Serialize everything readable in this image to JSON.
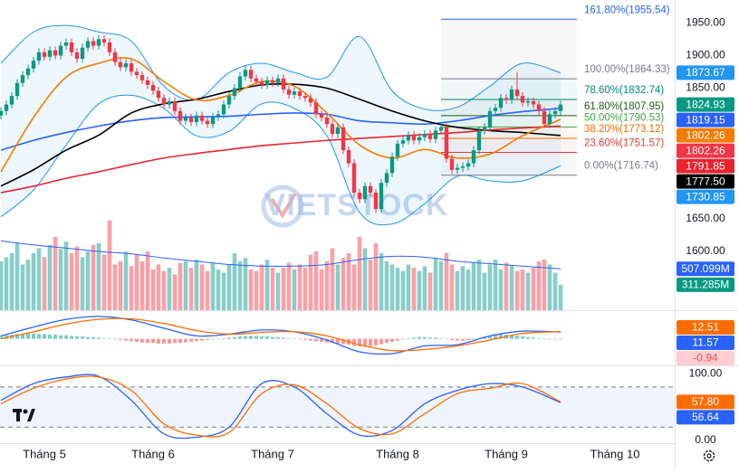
{
  "chart_data": {
    "type": "candlestick",
    "watermark": "VIETSTOCK",
    "up_color": "#089981",
    "down_color": "#f23645",
    "categories": [
      null,
      null,
      null,
      null,
      null,
      null,
      null,
      null,
      "Tháng 5",
      null,
      null,
      null,
      null,
      null,
      null,
      null,
      null,
      null,
      null,
      null,
      null,
      null,
      null,
      null,
      null,
      null,
      null,
      null,
      "Tháng 6",
      null,
      null,
      null,
      null,
      null,
      null,
      null,
      null,
      null,
      null,
      null,
      null,
      null,
      null,
      null,
      null,
      null,
      null,
      null,
      null,
      null,
      "Tháng 7",
      null,
      null,
      null,
      null,
      null,
      null,
      null,
      null,
      null,
      null,
      null,
      null,
      null,
      null,
      null,
      null,
      null,
      null,
      null,
      null,
      null,
      null,
      "Tháng 8",
      null,
      null,
      null,
      null,
      null,
      null,
      null,
      null,
      null,
      null,
      null,
      null,
      null,
      null,
      null,
      null,
      null,
      null,
      null,
      "Tháng 9",
      null,
      null,
      null,
      null,
      null,
      null,
      null,
      null,
      null,
      null,
      null,
      null,
      null,
      null,
      null,
      null,
      null,
      null,
      null,
      "Tháng 10",
      null,
      null,
      null,
      null,
      null,
      null,
      null,
      null,
      null,
      null
    ],
    "open": [
      1808,
      1815,
      1825,
      1838,
      1858,
      1870,
      1880,
      1892,
      1905,
      1898,
      1908,
      1900,
      1915,
      1920,
      1905,
      1895,
      1912,
      1922,
      1915,
      1925,
      1920,
      1905,
      1890,
      1882,
      1888,
      1875,
      1870,
      1862,
      1855,
      1846,
      1835,
      1825,
      1830,
      1815,
      1800,
      1805,
      1798,
      1808,
      1800,
      1795,
      1806,
      1810,
      1825,
      1838,
      1850,
      1868,
      1878,
      1865,
      1860,
      1855,
      1862,
      1858,
      1865,
      1848,
      1840,
      1845,
      1838,
      1835,
      1828,
      1810,
      1805,
      1795,
      1780,
      1790,
      1755,
      1735,
      1690,
      1680,
      1700,
      1690,
      1665,
      1705,
      1720,
      1745,
      1765,
      1770,
      1778,
      1770,
      1775,
      1780,
      1772,
      1785,
      1790,
      1742,
      1725,
      1728,
      1730,
      1735,
      1755,
      1785,
      1790,
      1815,
      1820,
      1835,
      1832,
      1848,
      1838,
      1828,
      1830,
      1825,
      1815,
      1795,
      1810,
      1815,
      null,
      null,
      null,
      null,
      null,
      null,
      null,
      null,
      null,
      null,
      null,
      null,
      null,
      null,
      null,
      null,
      null,
      null,
      null,
      null
    ],
    "high": [
      1821,
      1831,
      1844,
      1864,
      1876,
      1886,
      1898,
      1911,
      1911,
      1914,
      1914,
      1921,
      1926,
      1926,
      1911,
      1918,
      1928,
      1928,
      1931,
      1931,
      1926,
      1911,
      1896,
      1894,
      1894,
      1881,
      1876,
      1868,
      1861,
      1852,
      1841,
      1836,
      1836,
      1821,
      1811,
      1811,
      1814,
      1814,
      1806,
      1812,
      1816,
      1831,
      1844,
      1856,
      1874,
      1884,
      1884,
      1871,
      1866,
      1868,
      1868,
      1871,
      1871,
      1854,
      1851,
      1851,
      1844,
      1841,
      1834,
      1816,
      1811,
      1801,
      1796,
      1796,
      1761,
      1741,
      1696,
      1706,
      1706,
      1696,
      1711,
      1726,
      1751,
      1771,
      1776,
      1784,
      1784,
      1781,
      1786,
      1786,
      1791,
      1796,
      1796,
      1748,
      1734,
      1736,
      1741,
      1761,
      1791,
      1796,
      1821,
      1826,
      1841,
      1841,
      1854,
      1874,
      1844,
      1836,
      1836,
      1831,
      1821,
      1816,
      1821,
      1831,
      null,
      null,
      null,
      null,
      null,
      null,
      null,
      null,
      null,
      null,
      null,
      null,
      null,
      null,
      null,
      null,
      null,
      null,
      null,
      null
    ],
    "low": [
      1802,
      1809,
      1819,
      1832,
      1852,
      1864,
      1874,
      1886,
      1892,
      1892,
      1894,
      1894,
      1909,
      1899,
      1889,
      1889,
      1906,
      1909,
      1909,
      1914,
      1899,
      1884,
      1876,
      1876,
      1869,
      1864,
      1856,
      1849,
      1840,
      1829,
      1819,
      1819,
      1809,
      1794,
      1794,
      1792,
      1792,
      1794,
      1789,
      1789,
      1800,
      1804,
      1819,
      1832,
      1844,
      1862,
      1859,
      1854,
      1849,
      1849,
      1852,
      1852,
      1842,
      1834,
      1834,
      1832,
      1829,
      1822,
      1804,
      1799,
      1789,
      1774,
      1774,
      1749,
      1729,
      1684,
      1674,
      1674,
      1684,
      1659,
      1659,
      1699,
      1714,
      1739,
      1759,
      1764,
      1764,
      1764,
      1769,
      1766,
      1766,
      1779,
      1736,
      1719,
      1719,
      1722,
      1724,
      1729,
      1749,
      1779,
      1784,
      1809,
      1814,
      1826,
      1826,
      1832,
      1822,
      1822,
      1819,
      1809,
      1789,
      1789,
      1804,
      1809,
      null,
      null,
      null,
      null,
      null,
      null,
      null,
      null,
      null,
      null,
      null,
      null,
      null,
      null,
      null,
      null,
      null,
      null,
      null,
      null
    ],
    "close": [
      1815,
      1825,
      1838,
      1858,
      1870,
      1880,
      1892,
      1905,
      1898,
      1908,
      1900,
      1915,
      1920,
      1905,
      1895,
      1912,
      1922,
      1915,
      1925,
      1920,
      1905,
      1890,
      1882,
      1888,
      1875,
      1870,
      1862,
      1855,
      1846,
      1835,
      1825,
      1830,
      1815,
      1800,
      1805,
      1798,
      1808,
      1800,
      1795,
      1806,
      1810,
      1825,
      1838,
      1850,
      1868,
      1878,
      1865,
      1860,
      1855,
      1862,
      1858,
      1865,
      1848,
      1840,
      1845,
      1838,
      1835,
      1828,
      1810,
      1805,
      1795,
      1780,
      1790,
      1755,
      1735,
      1690,
      1680,
      1700,
      1690,
      1665,
      1705,
      1720,
      1745,
      1765,
      1770,
      1778,
      1770,
      1775,
      1780,
      1772,
      1785,
      1790,
      1742,
      1725,
      1728,
      1730,
      1735,
      1755,
      1785,
      1790,
      1815,
      1820,
      1835,
      1832,
      1848,
      1838,
      1828,
      1830,
      1825,
      1815,
      1795,
      1810,
      1815,
      1824.93,
      null,
      null,
      null,
      null,
      null,
      null,
      null,
      null,
      null,
      null,
      null,
      null,
      null,
      null,
      null,
      null,
      null,
      null,
      null,
      null
    ],
    "ylim": [
      1510,
      1985
    ],
    "yticks": [
      {
        "value": 1950,
        "label": "1950.00"
      },
      {
        "value": 1900,
        "label": "1900.00"
      },
      {
        "value": 1850,
        "label": "1850.00"
      },
      {
        "value": 1650,
        "label": "1650.00"
      },
      {
        "value": 1600,
        "label": "1600.00"
      }
    ],
    "grid": false,
    "line_x": [
      0,
      6,
      12,
      18,
      24,
      30,
      36,
      42,
      48,
      54,
      60,
      66,
      72,
      78,
      84,
      90,
      96,
      103
    ],
    "bands": {
      "color": "#2196f3",
      "fill": "#2196f3",
      "upper": [
        1888,
        1936,
        1946,
        1936,
        1922,
        1853,
        1832,
        1874,
        1888,
        1874,
        1867,
        1929,
        1846,
        1818,
        1821,
        1853,
        1888,
        1873.67
      ],
      "lower": [
        1653,
        1694,
        1763,
        1826,
        1839,
        1819,
        1777,
        1784,
        1826,
        1819,
        1777,
        1660,
        1642,
        1673,
        1715,
        1708,
        1708,
        1730.85
      ]
    },
    "lines": [
      {
        "color": "#2962ff",
        "values": [
          1755,
          1770,
          1782,
          1792,
          1800,
          1805,
          1806,
          1807,
          1810,
          1812,
          1810,
          1800,
          1797,
          1795,
          1800,
          1808,
          1814,
          1819.15
        ]
      },
      {
        "color": "#000000",
        "values": [
          1700,
          1725,
          1755,
          1778,
          1812,
          1826,
          1833,
          1845,
          1855,
          1856,
          1850,
          1833,
          1815,
          1800,
          1790,
          1785,
          1782,
          1777.5
        ],
        "value_labels": [
          null,
          null,
          null,
          null,
          null,
          null,
          null,
          null,
          null,
          null,
          null,
          null,
          null,
          null,
          null,
          null,
          null,
          "1777.50"
        ]
      },
      {
        "color": "#e8242f",
        "values": [
          1690,
          1700,
          1712,
          1722,
          1733,
          1743,
          1750,
          1756,
          1762,
          1766,
          1770,
          1773,
          1776,
          1779,
          1782,
          1786,
          1789,
          1791.85
        ]
      },
      {
        "color": "#f57c00",
        "values": [
          1722,
          1805,
          1867,
          1888,
          1895,
          1860,
          1832,
          1839,
          1860,
          1853,
          1812,
          1763,
          1743,
          1756,
          1743,
          1749,
          1777,
          1802.26
        ]
      }
    ],
    "price_markers": [
      {
        "value": 1802.26,
        "color": "#f23645"
      }
    ],
    "fib_levels": [
      {
        "label": "161.80%(1955.54)",
        "value": 1955.54,
        "color": "#2962ff"
      },
      {
        "label": "100.00%(1864.33)",
        "value": 1864.33,
        "color": "#787b86"
      },
      {
        "label": "78.60%(1832.74)",
        "value": 1832.74,
        "color": "#00897b"
      },
      {
        "label": "61.80%(1807.95)",
        "value": 1807.95,
        "color": "#1b5e20"
      },
      {
        "label": "50.00%(1790.53)",
        "value": 1790.53,
        "color": "#43a047"
      },
      {
        "label": "38.20%(1773.12)",
        "value": 1773.12,
        "color": "#ef6c00"
      },
      {
        "label": "23.60%(1751.57)",
        "value": 1751.57,
        "color": "#e53935"
      },
      {
        "label": "0.00%(1716.74)",
        "value": 1716.74,
        "color": "#787b86"
      }
    ],
    "volume": {
      "ylim": [
        0,
        3800
      ],
      "up_color": "#26a69a",
      "down_color": "#f7525f",
      "values": [
        600,
        650,
        700,
        820,
        560,
        620,
        700,
        760,
        650,
        800,
        900,
        750,
        840,
        700,
        780,
        650,
        720,
        800,
        820,
        680,
        1100,
        560,
        600,
        720,
        540,
        680,
        600,
        720,
        500,
        560,
        480,
        520,
        440,
        580,
        600,
        520,
        620,
        560,
        480,
        580,
        500,
        460,
        560,
        700,
        600,
        640,
        500,
        480,
        560,
        620,
        520,
        460,
        520,
        580,
        500,
        560,
        520,
        680,
        720,
        500,
        600,
        760,
        560,
        640,
        700,
        560,
        900,
        760,
        620,
        820,
        700,
        600,
        560,
        520,
        480,
        560,
        520,
        480,
        540,
        460,
        640,
        600,
        700,
        560,
        480,
        540,
        500,
        580,
        620,
        460,
        560,
        620,
        500,
        580,
        540,
        480,
        500,
        460,
        520,
        600,
        620,
        560,
        460,
        311.285,
        null,
        null,
        null,
        null,
        null,
        null,
        null,
        null,
        null,
        null,
        null,
        null,
        null,
        null,
        null,
        null,
        null,
        null,
        null,
        null
      ],
      "value_labels": [
        null,
        null,
        null,
        null,
        null,
        null,
        null,
        null,
        null,
        null,
        null,
        null,
        null,
        null,
        null,
        null,
        null,
        null,
        null,
        null,
        null,
        null,
        null,
        null,
        null,
        null,
        null,
        null,
        null,
        null,
        null,
        null,
        null,
        null,
        null,
        null,
        null,
        null,
        null,
        null,
        null,
        null,
        null,
        null,
        null,
        null,
        null,
        null,
        null,
        null,
        null,
        null,
        null,
        null,
        null,
        null,
        null,
        null,
        null,
        null,
        null,
        null,
        null,
        null,
        null,
        null,
        null,
        null,
        null,
        null,
        null,
        null,
        null,
        null,
        null,
        null,
        null,
        null,
        null,
        null,
        null,
        null,
        null,
        null,
        null,
        null,
        null,
        null,
        null,
        null,
        null,
        null,
        null,
        null,
        null,
        null,
        null,
        null,
        null,
        null,
        null,
        null,
        null,
        "311.285M",
        null,
        null,
        null,
        null,
        null,
        null,
        null,
        null,
        null,
        null,
        null,
        null,
        null,
        null,
        null,
        null,
        null,
        null,
        null,
        null
      ],
      "ma": {
        "color": "#2962ff",
        "values": [
          850,
          800,
          760,
          720,
          690,
          640,
          600,
          560,
          540,
          540,
          560,
          620,
          660,
          650,
          600,
          570,
          540,
          507.099
        ],
        "value_labels": [
          null,
          null,
          null,
          null,
          null,
          null,
          null,
          null,
          null,
          null,
          null,
          null,
          null,
          null,
          null,
          null,
          null,
          "507.099M"
        ]
      }
    },
    "macd": {
      "ylim": [
        -45,
        47
      ],
      "macd": {
        "color": "#2962ff",
        "values": [
          5,
          20,
          33,
          38,
          32,
          18,
          5,
          8,
          15,
          12,
          -2,
          -22,
          -25,
          -12,
          -10,
          5,
          13,
          11.57
        ]
      },
      "signal": {
        "color": "#ff6d00",
        "values": [
          0,
          12,
          25,
          33,
          34,
          26,
          14,
          8,
          11,
          12,
          5,
          -10,
          -20,
          -18,
          -12,
          -2,
          9,
          12.51
        ]
      },
      "histogram": {
        "up_color": "#26a69a",
        "down_color": "#ef5350",
        "values": [
          5,
          6,
          7,
          8,
          8,
          9,
          9,
          8,
          8,
          7,
          7,
          6,
          6,
          5,
          4,
          4,
          3,
          3,
          2,
          1,
          0,
          -1,
          -2,
          -3,
          -4,
          -5,
          -6,
          -7,
          -7,
          -8,
          -8,
          -8,
          -7,
          -7,
          -6,
          -5,
          -4,
          -3,
          -2,
          -1,
          0,
          1,
          2,
          3,
          4,
          5,
          5,
          5,
          4,
          4,
          3,
          3,
          2,
          1,
          0,
          -1,
          -2,
          -3,
          -4,
          -5,
          -6,
          -7,
          -8,
          -9,
          -10,
          -12,
          -13,
          -13,
          -12,
          -11,
          -9,
          -7,
          -5,
          -3,
          -1,
          1,
          2,
          3,
          3,
          2,
          2,
          1,
          0,
          -2,
          -3,
          -3,
          -2,
          -1,
          1,
          3,
          5,
          6,
          7,
          7,
          6,
          5,
          4,
          3,
          2,
          1,
          0,
          0,
          -1,
          -0.94,
          null,
          null,
          null,
          null,
          null,
          null,
          null,
          null,
          null,
          null,
          null,
          null,
          null,
          null,
          null,
          null,
          null,
          null,
          null,
          null
        ]
      }
    },
    "stoch": {
      "ylim": [
        -4,
        111
      ],
      "yticks": [
        {
          "value": 100,
          "label": "100.00"
        },
        {
          "value": 0,
          "label": "0.00"
        }
      ],
      "bands": [
        20,
        80
      ],
      "k": {
        "color": "#2962ff",
        "values": [
          60,
          85,
          95,
          96,
          60,
          10,
          5,
          20,
          85,
          80,
          40,
          8,
          15,
          55,
          75,
          85,
          80,
          56.64
        ]
      },
      "d": {
        "color": "#ff6d00",
        "values": [
          55,
          78,
          92,
          95,
          75,
          25,
          8,
          12,
          70,
          83,
          55,
          18,
          10,
          40,
          70,
          78,
          85,
          57.8
        ],
        "value_labels": [
          null,
          null,
          null,
          null,
          null,
          null,
          null,
          null,
          null,
          null,
          null,
          null,
          null,
          null,
          null,
          null,
          null,
          "57.80"
        ]
      }
    }
  }
}
